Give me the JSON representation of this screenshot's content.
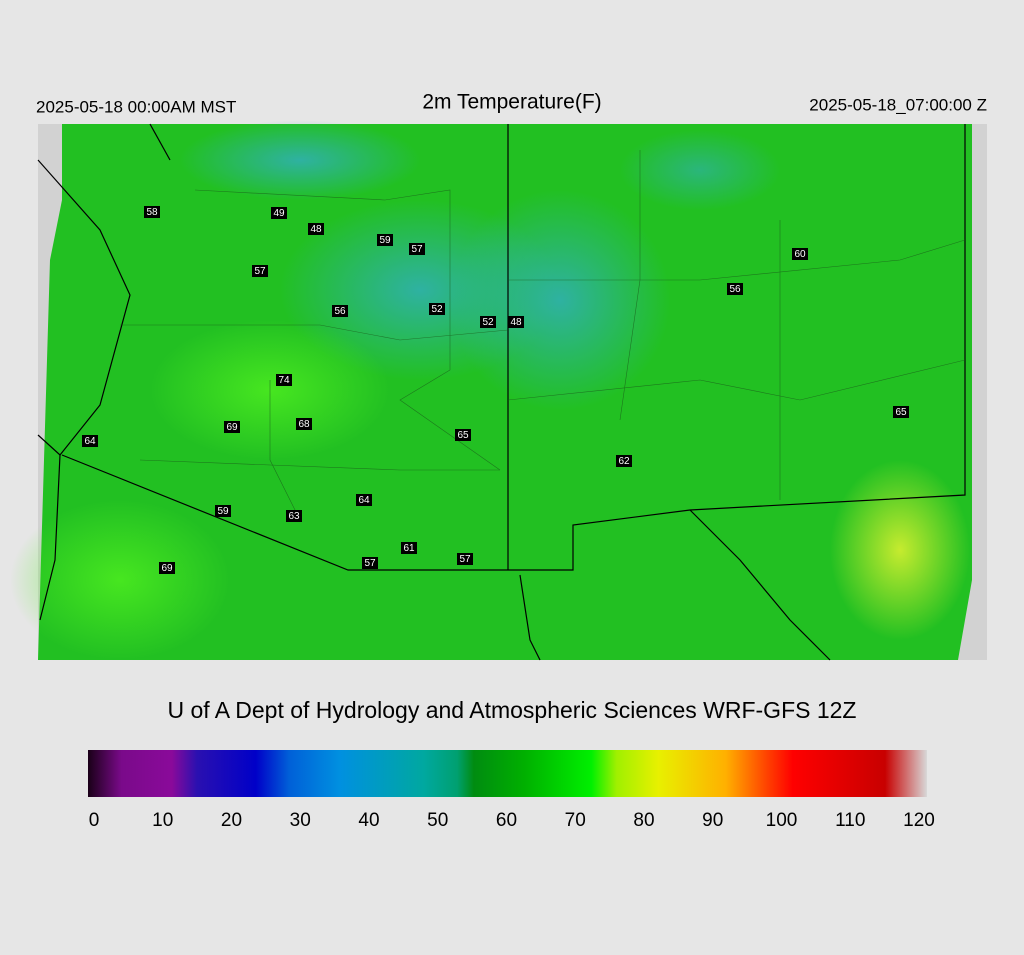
{
  "header": {
    "left": "2025-05-18 00:00AM MST",
    "title": "2m Temperature(F)",
    "right": "2025-05-18_07:00:00 Z"
  },
  "stations": [
    58,
    49,
    48,
    59,
    57,
    57,
    60,
    56,
    56,
    52,
    52,
    48,
    74,
    65,
    69,
    68,
    65,
    64,
    62,
    64,
    59,
    63,
    61,
    57,
    57,
    69
  ],
  "footer": "U of A Dept of Hydrology and Atmospheric Sciences WRF-GFS 12Z",
  "colorbar": {
    "lim": [
      0,
      120
    ],
    "ticks": [
      0,
      10,
      20,
      30,
      40,
      50,
      60,
      70,
      80,
      90,
      100,
      110,
      120
    ]
  }
}
